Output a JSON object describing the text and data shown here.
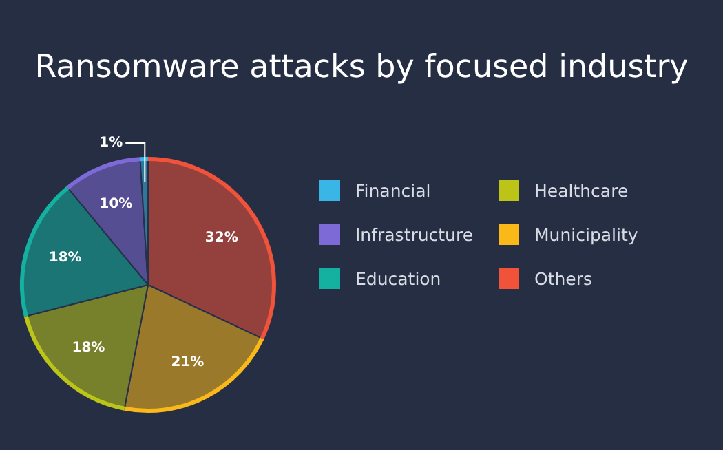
{
  "chart_data": {
    "type": "pie",
    "title": "Ransomware attacks by focused industry",
    "categories": [
      "Others",
      "Municipality",
      "Healthcare",
      "Education",
      "Infrastructure",
      "Financial"
    ],
    "values": [
      32,
      21,
      18,
      18,
      10,
      1
    ],
    "colors": [
      "#f0523a",
      "#fbb819",
      "#bcc418",
      "#14b0a0",
      "#7e6ad6",
      "#3ab6e6"
    ],
    "value_labels": [
      "32%",
      "21%",
      "18%",
      "18%",
      "10%",
      "1%"
    ],
    "legend": "right"
  }
}
